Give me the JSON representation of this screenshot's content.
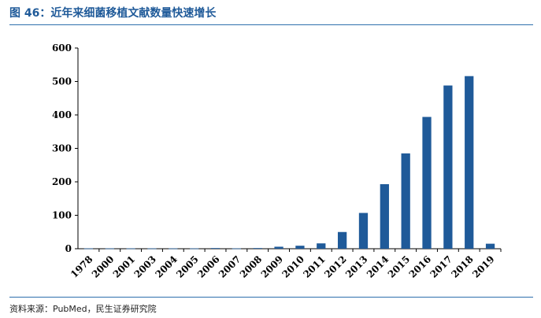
{
  "header": {
    "title": "图 46：近年来细菌移植文献数量快速增长"
  },
  "footer": {
    "source": "资料来源：PubMed，民生证券研究院"
  },
  "colors": {
    "bar": "#1f5a99",
    "title": "#1f5a99",
    "rule": "#2e6fad"
  },
  "chart_data": {
    "type": "bar",
    "title": "",
    "xlabel": "",
    "ylabel": "",
    "ylim": [
      0,
      600
    ],
    "yticks": [
      0,
      100,
      200,
      300,
      400,
      500,
      600
    ],
    "grid": false,
    "legend": "none",
    "categories": [
      "1978",
      "2000",
      "2001",
      "2003",
      "2004",
      "2005",
      "2006",
      "2007",
      "2008",
      "2009",
      "2010",
      "2011",
      "2012",
      "2013",
      "2014",
      "2015",
      "2016",
      "2017",
      "2018",
      "2019"
    ],
    "values": [
      1,
      1,
      1,
      1,
      1,
      1,
      2,
      1,
      2,
      6,
      9,
      16,
      50,
      107,
      193,
      285,
      394,
      488,
      516,
      15
    ]
  }
}
